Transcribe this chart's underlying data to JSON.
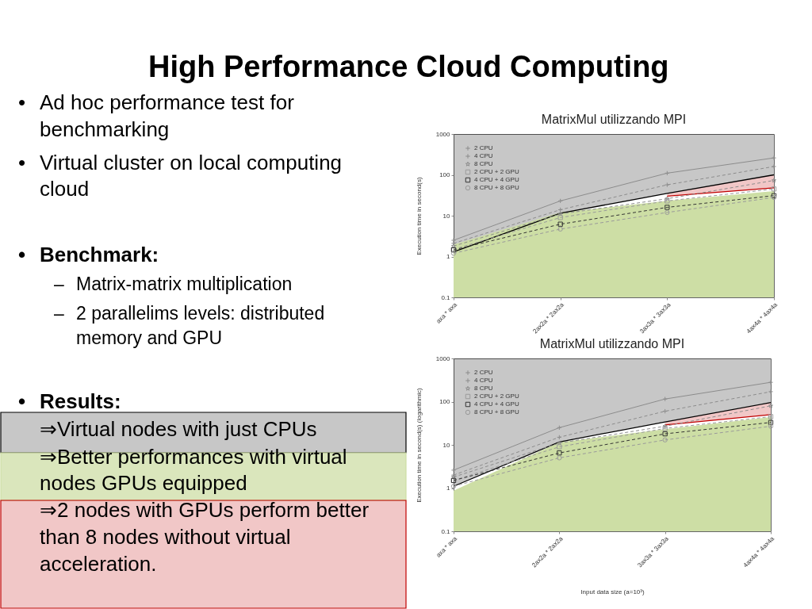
{
  "chart_data": [
    {
      "type": "other",
      "title": "High Performance Cloud Computing",
      "annotations": [
        "•\tAd hoc performance test for benchmarking",
        "•\tVirtual cluster on local computing cloud",
        "•\tBenchmark:",
        "–\tMatrix-matrix multiplication",
        "–\t2 parallelims levels: distributed memory and GPU",
        "•\tResults:",
        "⇒Virtual nodes with just CPUs",
        "⇒Better performances with virtual nodes GPUs equipped",
        "⇒2 nodes with GPUs perform better than 8 nodes without virtual acceleration."
      ]
    },
    {
      "type": "line",
      "title": "MatrixMul utilizzando MPI",
      "ylabel": "Execution time in second(s)",
      "categories": [
        "axa * axa",
        "2ax2a * 2ax2a",
        "3ax3a * 3ax3a",
        "4ax4a * 4ax4a"
      ],
      "log": "y",
      "ylim": [
        0.1,
        1000
      ],
      "yticks": [
        0.1,
        1,
        10,
        100,
        1000
      ],
      "legend": "top left",
      "series": [
        {
          "type": "line",
          "color": "#000000",
          "line_style": "solid",
          "values": [
            1.3,
            11.5,
            35,
            100
          ],
          "lower": [
            1.3,
            11.5,
            35,
            100
          ],
          "upper": [
            1000,
            1000,
            1000,
            1000
          ]
        },
        {
          "type": "area",
          "color": "#cddea5",
          "values": [
            1.95,
            12,
            23,
            40
          ]
        },
        {
          "type": "line",
          "color": "#c00000",
          "line_style": "solid",
          "values": [
            null,
            null,
            30,
            48
          ],
          "lower": [
            null,
            null,
            30,
            48
          ],
          "upper": [
            null,
            null,
            35,
            100
          ]
        },
        {
          "name": "2 CPU",
          "color": "#8c8c8c",
          "marker": "cross",
          "line_style": "solid",
          "values": [
            2.5,
            23,
            110,
            260
          ]
        },
        {
          "name": "4 CPU",
          "color": "#8c8c8c",
          "marker": "cross",
          "line_style": "dashed",
          "values": [
            2.1,
            14,
            57,
            160
          ]
        },
        {
          "name": "8 CPU",
          "color": "#8c8c8c",
          "marker": "star",
          "line_style": "dashed",
          "values": [
            1.8,
            11,
            26,
            73
          ]
        },
        {
          "name": "2 CPU + 2 GPU",
          "color": "#9a9a9a",
          "marker": "square",
          "line_style": "dashed",
          "values": [
            1.5,
            9,
            23,
            45
          ]
        },
        {
          "name": "4 CPU + 4 GPU",
          "color": "#333333",
          "marker": "square",
          "line_style": "dashed",
          "values": [
            1.45,
            6.2,
            16,
            31
          ]
        },
        {
          "name": "8 CPU + 8 GPU",
          "color": "#9a9a9a",
          "marker": "circle",
          "line_style": "dashed",
          "values": [
            1.2,
            4.7,
            12,
            28
          ]
        }
      ]
    },
    {
      "type": "line",
      "title": "MatrixMul utilizzando MPI",
      "xlabel": "Input data size (a=10³)",
      "ylabel": "Execution time in second(s) (logarithmic)",
      "categories": [
        "axa * axa",
        "2ax2a * 2ax2a",
        "3ax3a * 3ax3a",
        "4ax4a * 4ax4a"
      ],
      "log": "y",
      "ylim": [
        0.1,
        1000
      ],
      "yticks": [
        0.1,
        1,
        10,
        100,
        1000
      ],
      "legend": "top left",
      "series": [
        {
          "type": "line",
          "color": "#000000",
          "line_style": "solid",
          "values": [
            1.1,
            11.7,
            34,
            95
          ],
          "lower": [
            1.1,
            11.7,
            34,
            95
          ],
          "upper": [
            1000,
            1000,
            1000,
            1000
          ]
        },
        {
          "type": "area",
          "color": "#cddea5",
          "values": [
            0.87,
            11.5,
            23,
            44
          ]
        },
        {
          "type": "line",
          "color": "#c00000",
          "line_style": "solid",
          "values": [
            null,
            null,
            29,
            50
          ],
          "lower": [
            null,
            null,
            29,
            50
          ],
          "upper": [
            null,
            null,
            34,
            95
          ]
        },
        {
          "name": "2 CPU",
          "color": "#8c8c8c",
          "marker": "cross",
          "line_style": "solid",
          "values": [
            2.6,
            25,
            115,
            280
          ]
        },
        {
          "name": "4 CPU",
          "color": "#8c8c8c",
          "marker": "cross",
          "line_style": "dashed",
          "values": [
            2.0,
            15,
            60,
            170
          ]
        },
        {
          "name": "8 CPU",
          "color": "#8c8c8c",
          "marker": "star",
          "line_style": "dashed",
          "values": [
            1.8,
            11,
            27,
            80
          ]
        },
        {
          "name": "2 CPU + 2 GPU",
          "color": "#9a9a9a",
          "marker": "square",
          "line_style": "dashed",
          "values": [
            1.5,
            9,
            24,
            45
          ]
        },
        {
          "name": "4 CPU + 4 GPU",
          "color": "#333333",
          "marker": "square",
          "line_style": "dashed",
          "values": [
            1.5,
            6.5,
            18,
            33
          ]
        },
        {
          "name": "8 CPU + 8 GPU",
          "color": "#9a9a9a",
          "marker": "circle",
          "line_style": "dashed",
          "values": [
            1.1,
            5,
            13,
            27
          ]
        }
      ]
    }
  ]
}
